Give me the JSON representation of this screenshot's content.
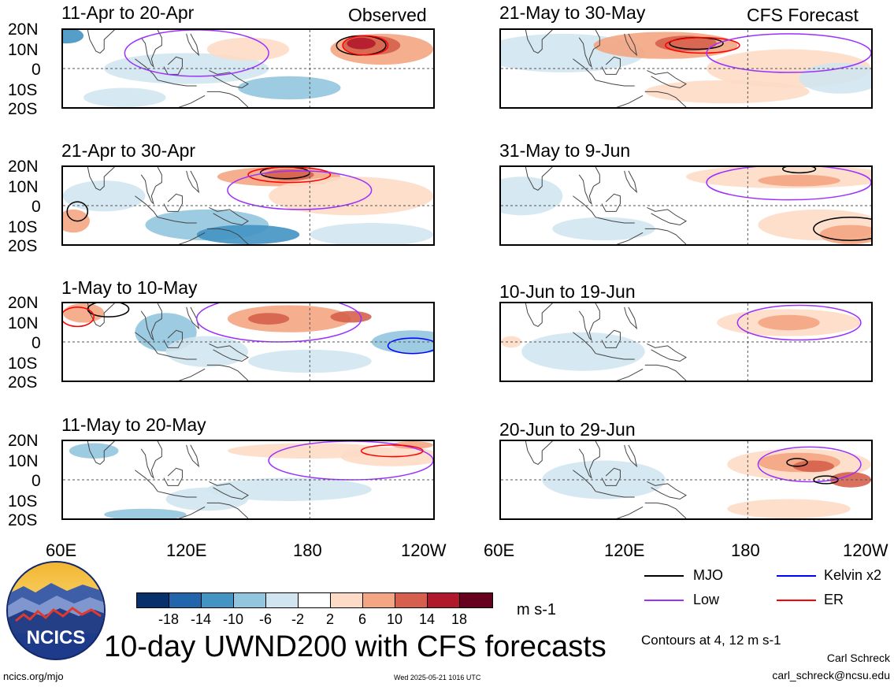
{
  "header": {
    "observed_label": "Observed",
    "forecast_label": "CFS Forecast"
  },
  "panels": [
    {
      "title": "11-Apr to 20-Apr",
      "column": "observed"
    },
    {
      "title": "21-Apr to 30-Apr",
      "column": "observed"
    },
    {
      "title": "1-May to 10-May",
      "column": "observed"
    },
    {
      "title": "11-May to 20-May",
      "column": "observed"
    },
    {
      "title": "21-May to 30-May",
      "column": "forecast"
    },
    {
      "title": "31-May to 9-Jun",
      "column": "forecast"
    },
    {
      "title": "10-Jun to 19-Jun",
      "column": "forecast"
    },
    {
      "title": "20-Jun to 29-Jun",
      "column": "forecast"
    }
  ],
  "axes": {
    "y_ticks": [
      "20N",
      "10N",
      "0",
      "10S",
      "20S"
    ],
    "x_ticks": [
      "60E",
      "120E",
      "180",
      "120W"
    ]
  },
  "colorbar": {
    "labels": [
      "-18",
      "-14",
      "-10",
      "-6",
      "-2",
      "2",
      "6",
      "10",
      "14",
      "18"
    ],
    "colors": [
      "#08306b",
      "#2166ac",
      "#4393c3",
      "#92c5de",
      "#d1e5f0",
      "#ffffff",
      "#fddbc7",
      "#f4a582",
      "#d6604d",
      "#b2182b",
      "#67001f"
    ],
    "unit": "m s-1"
  },
  "legend": [
    {
      "label": "MJO",
      "color": "#000000"
    },
    {
      "label": "Kelvin x2",
      "color": "#0000ff"
    },
    {
      "label": "Low",
      "color": "#9b30ff"
    },
    {
      "label": "ER",
      "color": "#ff0000"
    }
  ],
  "footer": {
    "title": "10-day UWND200 with CFS forecasts",
    "contours_note": "Contours at 4, 12 m s-1",
    "author": "Carl Schreck",
    "email": "carl_schreck@ncsu.edu",
    "url": "ncics.org/mjo",
    "timestamp": "Wed 2025-05-21 1016 UTC",
    "logo_text": "NCICS"
  },
  "chart_data": {
    "type": "heatmap",
    "variable": "10-day UWND200 with CFS forecasts",
    "unit": "m s-1",
    "contour_levels": [
      4,
      12
    ],
    "xlim": [
      "60E",
      "120W"
    ],
    "ylim": [
      "20S",
      "20N"
    ],
    "x_ticks": [
      "60E",
      "120E",
      "180",
      "120W"
    ],
    "y_ticks": [
      "20N",
      "10N",
      "0",
      "10S",
      "20S"
    ],
    "color_levels": [
      -18,
      -14,
      -10,
      -6,
      -2,
      2,
      6,
      10,
      14,
      18
    ],
    "grid": false,
    "reference_lines": [
      "equator",
      "180"
    ],
    "legend_placement": "bottom-right",
    "series": [
      {
        "name": "MJO"
      },
      {
        "name": "Kelvin x2"
      },
      {
        "name": "Low"
      },
      {
        "name": "ER"
      }
    ],
    "panels": [
      {
        "title": "11-Apr to 20-Apr",
        "source": "Observed"
      },
      {
        "title": "21-Apr to 30-Apr",
        "source": "Observed"
      },
      {
        "title": "1-May to 10-May",
        "source": "Observed"
      },
      {
        "title": "11-May to 20-May",
        "source": "Observed"
      },
      {
        "title": "21-May to 30-May",
        "source": "CFS Forecast"
      },
      {
        "title": "31-May to 9-Jun",
        "source": "CFS Forecast"
      },
      {
        "title": "10-Jun to 19-Jun",
        "source": "CFS Forecast"
      },
      {
        "title": "20-Jun to 29-Jun",
        "source": "CFS Forecast"
      }
    ]
  }
}
